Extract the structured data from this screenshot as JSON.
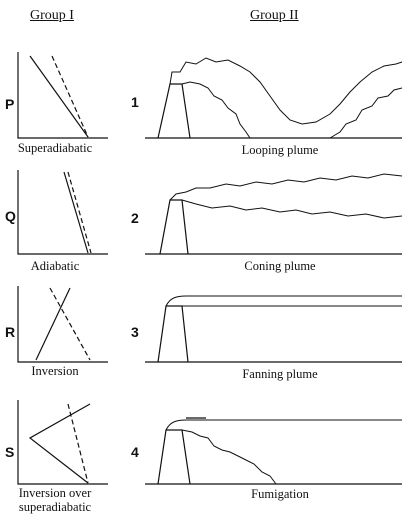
{
  "headings": {
    "group1": "Group I",
    "group2": "Group II"
  },
  "group1": {
    "items": [
      {
        "letter": "P",
        "caption": "Superadiabatic"
      },
      {
        "letter": "Q",
        "caption": "Adiabatic"
      },
      {
        "letter": "R",
        "caption": "Inversion"
      },
      {
        "letter": "S",
        "caption_line1": "Inversion over",
        "caption_line2": "superadiabatic"
      }
    ]
  },
  "group2": {
    "items": [
      {
        "number": "1",
        "caption": "Looping plume"
      },
      {
        "number": "2",
        "caption": "Coning plume"
      },
      {
        "number": "3",
        "caption": "Fanning plume"
      },
      {
        "number": "4",
        "caption": "Fumigation"
      }
    ]
  }
}
